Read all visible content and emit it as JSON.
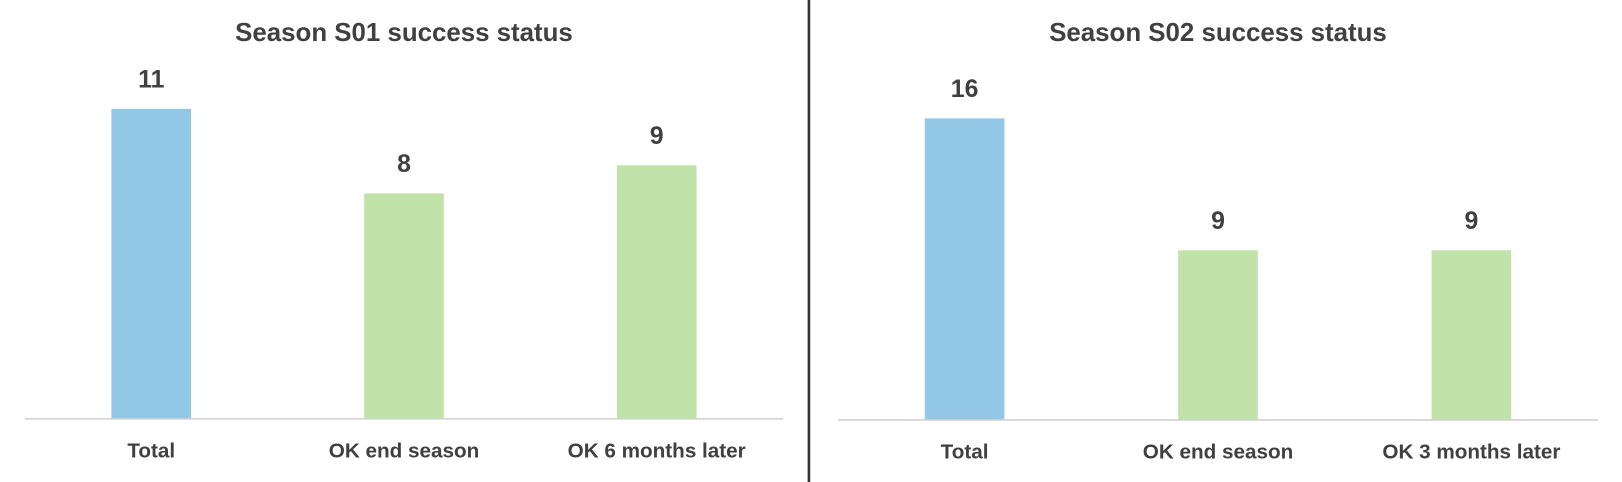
{
  "chart_data": [
    {
      "type": "bar",
      "title": "Season S01 success status",
      "categories": [
        "Total",
        "OK end season",
        "OK 6 months later"
      ],
      "values": [
        11,
        8,
        9
      ],
      "colors": [
        "#92c8e6",
        "#c1e3a9",
        "#c1e3a9"
      ],
      "ylim": [
        0,
        12
      ]
    },
    {
      "type": "bar",
      "title": "Season S02 success status",
      "categories": [
        "Total",
        "OK end season",
        "OK 3 months later"
      ],
      "values": [
        16,
        9,
        9
      ],
      "colors": [
        "#92c8e6",
        "#c1e3a9",
        "#c1e3a9"
      ],
      "ylim": [
        0,
        18
      ]
    }
  ]
}
